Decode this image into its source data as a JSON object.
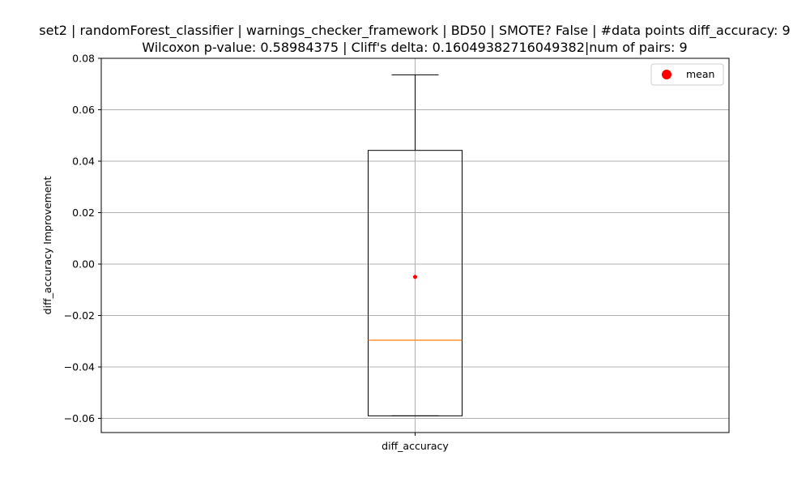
{
  "chart_data": {
    "type": "box",
    "title_line1": "set2 | randomForest_classifier | warnings_checker_framework | BD50 | SMOTE? False | #data points diff_accuracy: 9",
    "title_line2": "Wilcoxon p-value: 0.58984375 | Cliff's delta: 0.16049382716049382|num of pairs: 9",
    "ylabel": "diff_accuracy Improvement",
    "categories": [
      "diff_accuracy"
    ],
    "ylim": [
      -0.0655,
      0.08
    ],
    "yticks": [
      -0.06,
      -0.04,
      -0.02,
      0.0,
      0.02,
      0.04,
      0.06,
      0.08
    ],
    "ytick_labels": [
      "−0.06",
      "−0.04",
      "−0.02",
      "0.00",
      "0.02",
      "0.04",
      "0.06",
      "0.08"
    ],
    "grid": true,
    "legend_position": "top-right",
    "legend_label": "mean",
    "box": {
      "whisker_low": -0.059,
      "q1": -0.059,
      "median": -0.0296,
      "q3": 0.0442,
      "whisker_high": 0.0736,
      "mean": -0.005
    },
    "colors": {
      "box": "#000000",
      "median": "#ff7f0e",
      "mean": "#ff0000",
      "grid": "#b0b0b0"
    }
  }
}
